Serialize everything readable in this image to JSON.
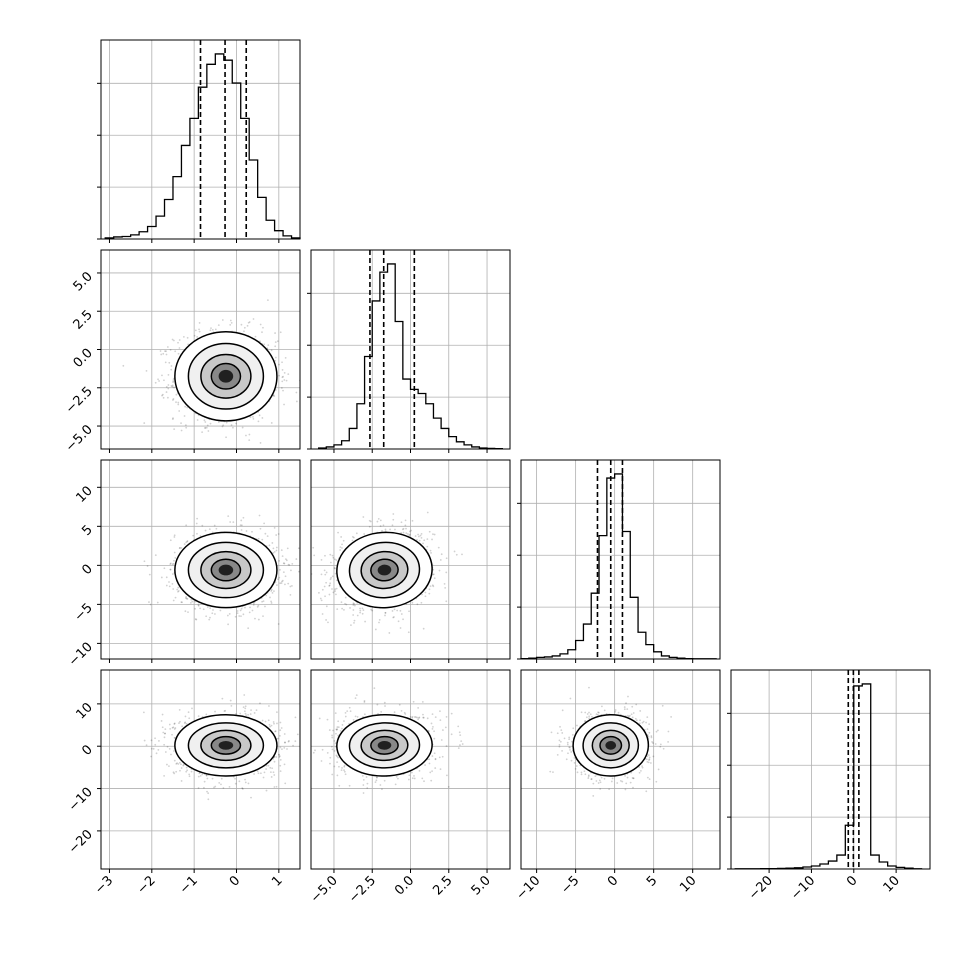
{
  "chart_data": {
    "type": "corner",
    "title": "",
    "grid": true,
    "variables": [
      {
        "range": [
          -3.2,
          1.5
        ],
        "ticks": [
          -3,
          -2,
          -1,
          0,
          1
        ],
        "tick_labels": [
          "−3",
          "−2",
          "−1",
          "0",
          "1"
        ],
        "quantiles": [
          -0.85,
          -0.27,
          0.23
        ],
        "hist_y_ticks": [
          0,
          0.25,
          0.5,
          0.75
        ],
        "hist": {
          "bin_edges": [
            -3.1,
            -2.9,
            -2.7,
            -2.5,
            -2.3,
            -2.1,
            -1.9,
            -1.7,
            -1.5,
            -1.3,
            -1.1,
            -0.9,
            -0.7,
            -0.5,
            -0.3,
            -0.1,
            0.1,
            0.3,
            0.5,
            0.7,
            0.9,
            1.1,
            1.3,
            1.5
          ],
          "values": [
            0.005,
            0.01,
            0.012,
            0.02,
            0.035,
            0.06,
            0.11,
            0.19,
            0.3,
            0.45,
            0.58,
            0.73,
            0.84,
            0.89,
            0.86,
            0.75,
            0.58,
            0.38,
            0.2,
            0.09,
            0.04,
            0.015,
            0.005
          ]
        }
      },
      {
        "range": [
          -6.5,
          6.5
        ],
        "ticks": [
          -5,
          -2.5,
          0,
          2.5,
          5
        ],
        "tick_labels": [
          "−5.0",
          "−2.5",
          "0.0",
          "2.5",
          "5.0"
        ],
        "quantiles": [
          -2.65,
          -1.75,
          0.25
        ],
        "hist_y_ticks": [
          0,
          0.25,
          0.5,
          0.75
        ],
        "hist": {
          "bin_edges": [
            -6.0,
            -5.5,
            -5.0,
            -4.5,
            -4.0,
            -3.5,
            -3.0,
            -2.5,
            -2.0,
            -1.5,
            -1.0,
            -0.5,
            0.0,
            0.5,
            1.0,
            1.5,
            2.0,
            2.5,
            3.0,
            3.5,
            4.0,
            4.5,
            5.0,
            5.5,
            6.0
          ],
          "values": [
            0.005,
            0.01,
            0.02,
            0.04,
            0.1,
            0.22,
            0.45,
            0.72,
            0.86,
            0.9,
            0.62,
            0.34,
            0.29,
            0.27,
            0.22,
            0.15,
            0.1,
            0.06,
            0.035,
            0.02,
            0.01,
            0.005,
            0.003,
            0.002
          ]
        }
      },
      {
        "range": [
          -12,
          13.5
        ],
        "ticks": [
          -10,
          -5,
          0,
          5,
          10
        ],
        "tick_labels": [
          "−10",
          "−5",
          "0",
          "5",
          "10"
        ],
        "quantiles": [
          -2.2,
          -0.5,
          1.0
        ],
        "hist_y_ticks": [
          0,
          0.25,
          0.5,
          0.75
        ],
        "hist": {
          "bin_edges": [
            -12,
            -11,
            -10,
            -9,
            -8,
            -7,
            -6,
            -5,
            -4,
            -3,
            -2,
            -1,
            0,
            1,
            2,
            3,
            4,
            5,
            6,
            7,
            8,
            9,
            10,
            11,
            12,
            13
          ],
          "values": [
            0.002,
            0.004,
            0.008,
            0.01,
            0.015,
            0.025,
            0.045,
            0.09,
            0.17,
            0.32,
            0.6,
            0.88,
            0.9,
            0.62,
            0.3,
            0.13,
            0.07,
            0.035,
            0.015,
            0.008,
            0.004,
            0.002,
            0.001,
            0.001,
            0.001
          ]
        }
      },
      {
        "range": [
          -29,
          18
        ],
        "ticks": [
          -20,
          -10,
          0,
          10
        ],
        "tick_labels": [
          "−20",
          "−10",
          "0",
          "10"
        ],
        "quantiles": [
          -1.3,
          -0.1,
          1.2
        ],
        "hist_y_ticks": [
          0,
          0.25,
          0.5,
          0.75
        ],
        "hist": {
          "bin_edges": [
            -28,
            -26,
            -24,
            -22,
            -20,
            -18,
            -16,
            -14,
            -12,
            -10,
            -8,
            -6,
            -4,
            -2,
            0,
            2,
            4,
            6,
            8,
            10,
            12,
            14,
            16
          ],
          "values": [
            0.001,
            0.001,
            0.001,
            0.002,
            0.002,
            0.003,
            0.004,
            0.006,
            0.01,
            0.015,
            0.025,
            0.04,
            0.07,
            0.22,
            0.92,
            0.93,
            0.07,
            0.035,
            0.015,
            0.008,
            0.004,
            0.001
          ]
        }
      }
    ],
    "pairs": [
      {
        "row": 1,
        "col": 0,
        "mean": [
          -0.25,
          -1.75
        ],
        "sd": [
          0.6,
          1.45
        ],
        "corr": 0.0
      },
      {
        "row": 2,
        "col": 0,
        "mean": [
          -0.25,
          -0.6
        ],
        "sd": [
          0.6,
          2.4
        ],
        "corr": 0.0
      },
      {
        "row": 2,
        "col": 1,
        "mean": [
          -1.7,
          -0.6
        ],
        "sd": [
          1.55,
          2.4
        ],
        "corr": 0.15
      },
      {
        "row": 3,
        "col": 0,
        "mean": [
          -0.25,
          0.2
        ],
        "sd": [
          0.6,
          3.6
        ],
        "corr": 0.0
      },
      {
        "row": 3,
        "col": 1,
        "mean": [
          -1.7,
          0.2
        ],
        "sd": [
          1.55,
          3.6
        ],
        "corr": 0.05
      },
      {
        "row": 3,
        "col": 2,
        "mean": [
          -0.5,
          0.2
        ],
        "sd": [
          2.4,
          3.6
        ],
        "corr": 0.05
      }
    ]
  }
}
